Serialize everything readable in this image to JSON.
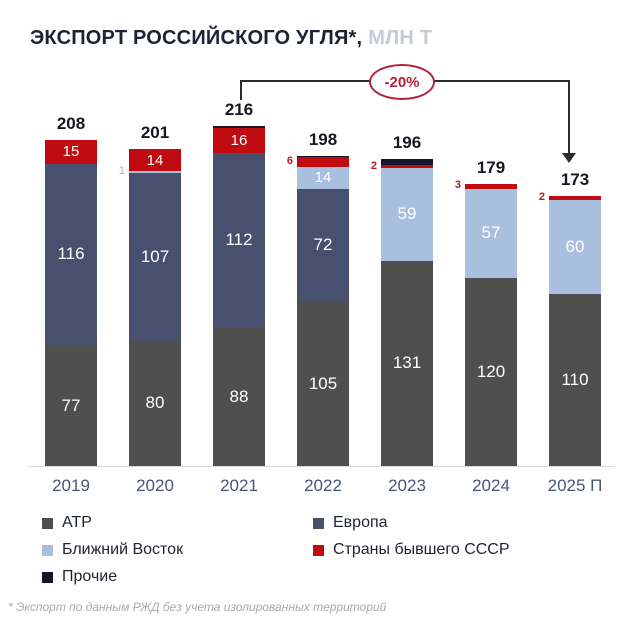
{
  "title": {
    "main": "ЭКСПОРТ РОССИЙСКОГО УГЛЯ*,",
    "unit": "МЛН Т"
  },
  "annotation": {
    "label": "-20%",
    "from_year": "2021",
    "to_year": "2025 П"
  },
  "footnote": "* Экспорт по данным РЖД без учета изолированных территорий",
  "colors": {
    "atr": "#4f4f4f",
    "europe": "#47516e",
    "middle_east": "#a8bfdd",
    "ussr": "#c00c11",
    "other": "#12152c",
    "accent_red": "#b02337",
    "title_dark": "#1d2335",
    "title_unit_gray": "#c5cad7",
    "year_label": "#4a5578"
  },
  "legend": [
    {
      "key": "atr",
      "label": "АТР"
    },
    {
      "key": "europe",
      "label": "Европа"
    },
    {
      "key": "middle_east",
      "label": "Ближний Восток"
    },
    {
      "key": "ussr",
      "label": "Страны бывшего СССР"
    },
    {
      "key": "other",
      "label": "Прочие"
    }
  ],
  "chart_data": {
    "type": "bar",
    "stacked": true,
    "unit": "млн т",
    "categories": [
      "2019",
      "2020",
      "2021",
      "2022",
      "2023",
      "2024",
      "2025 П"
    ],
    "series": [
      {
        "name": "АТР",
        "key": "atr",
        "values": [
          77,
          80,
          88,
          105,
          131,
          120,
          110
        ]
      },
      {
        "name": "Европа",
        "key": "europe",
        "values": [
          116,
          107,
          112,
          72,
          0,
          0,
          0
        ]
      },
      {
        "name": "Ближний Восток",
        "key": "middle_east",
        "values": [
          0,
          1,
          0,
          14,
          59,
          57,
          60
        ]
      },
      {
        "name": "Страны бывшего СССР",
        "key": "ussr",
        "values": [
          15,
          14,
          16,
          6,
          2,
          3,
          2
        ]
      },
      {
        "name": "Прочие",
        "key": "other",
        "values": [
          0,
          0,
          1,
          1,
          4,
          0,
          0
        ]
      }
    ],
    "totals": [
      "208",
      "201",
      "216",
      "198",
      "196",
      "179",
      "173"
    ],
    "outside_labels": [
      {
        "year": "2020",
        "key": "middle_east",
        "text": "1",
        "style": "gray"
      },
      {
        "year": "2022",
        "key": "ussr",
        "text": "6",
        "style": "red"
      },
      {
        "year": "2023",
        "key": "ussr",
        "text": "2",
        "style": "red"
      },
      {
        "year": "2024",
        "key": "ussr",
        "text": "3",
        "style": "red"
      },
      {
        "year": "2025 П",
        "key": "ussr",
        "text": "2",
        "style": "red"
      }
    ],
    "legend_position": "bottom",
    "grid": false
  }
}
